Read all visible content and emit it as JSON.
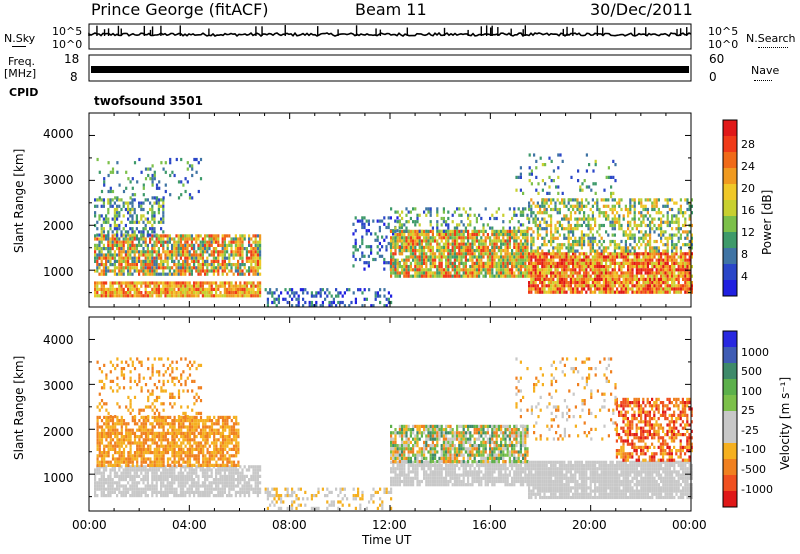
{
  "header": {
    "station": "Prince George (fitACF)",
    "beam": "Beam 11",
    "date": "30/Dec/2011"
  },
  "strips": {
    "nsky": {
      "label": "N.Sky",
      "right_label": "N.Search",
      "left_ticks": [
        "10^5",
        "10^0"
      ],
      "right_ticks": [
        "10^5",
        "10^0"
      ]
    },
    "freq": {
      "label_top": "Freq.",
      "label_bottom": "[MHz]",
      "right_label": "Nave",
      "left_ticks": [
        "18",
        "8"
      ],
      "right_ticks": [
        "60",
        "0"
      ]
    },
    "cpid": {
      "label": "CPID",
      "program": "twofsound 3501"
    }
  },
  "power_panel": {
    "ylabel": "Slant Range [km]",
    "yticks": [
      "4000",
      "3000",
      "2000",
      "1000"
    ],
    "colorbar_label": "Power [dB]",
    "colorbar_ticks": [
      "28",
      "24",
      "20",
      "16",
      "12",
      "8",
      "4"
    ]
  },
  "velocity_panel": {
    "ylabel": "Slant Range [km]",
    "yticks": [
      "4000",
      "3000",
      "2000",
      "1000"
    ],
    "colorbar_label": "Velocity [m s⁻¹]",
    "colorbar_ticks": [
      "1000",
      "500",
      "100",
      "25",
      "-25",
      "-100",
      "-500",
      "-1000"
    ]
  },
  "x_axis": {
    "label": "Time UT",
    "ticks": [
      "00:00",
      "04:00",
      "08:00",
      "12:00",
      "16:00",
      "20:00",
      "00:00"
    ]
  },
  "colors": {
    "power_scale": [
      "#2a2ad8",
      "#3f64b4",
      "#3e8a6a",
      "#6cb04b",
      "#c8c832",
      "#f0a020",
      "#f07020",
      "#e02020"
    ],
    "velocity_scale": [
      "#2a2ad8",
      "#3f64b4",
      "#3e8a6a",
      "#7cc04a",
      "#c8c8c8",
      "#c8c8c8",
      "#f5a020",
      "#f07020",
      "#e02020"
    ]
  },
  "chart_data": [
    {
      "type": "line",
      "name": "N.Sky / N.Search",
      "x_range": [
        "00:00",
        "24:00"
      ],
      "y_scale": "log",
      "ylim": [
        "10^0",
        "10^5"
      ]
    },
    {
      "type": "line",
      "name": "Freq. / Nave",
      "x_range": [
        "00:00",
        "24:00"
      ],
      "ylim_left": [
        8,
        18
      ],
      "ylim_right": [
        0,
        60
      ]
    },
    {
      "type": "heatmap",
      "quantity": "Power [dB]",
      "xlabel": "Time UT",
      "ylabel": "Slant Range [km]",
      "x_ticks": [
        "00:00",
        "04:00",
        "08:00",
        "12:00",
        "16:00",
        "20:00",
        "00:00"
      ],
      "ylim": [
        180,
        4500
      ],
      "clim": [
        0,
        32
      ],
      "colorbar_ticks": [
        4,
        8,
        12,
        16,
        20,
        24,
        28
      ]
    },
    {
      "type": "heatmap",
      "quantity": "Velocity [m s^-1]",
      "xlabel": "Time UT",
      "ylabel": "Slant Range [km]",
      "x_ticks": [
        "00:00",
        "04:00",
        "08:00",
        "12:00",
        "16:00",
        "20:00",
        "00:00"
      ],
      "ylim": [
        180,
        4500
      ],
      "colorbar_ticks": [
        1000,
        500,
        100,
        25,
        -25,
        -100,
        -500,
        -1000
      ]
    }
  ]
}
